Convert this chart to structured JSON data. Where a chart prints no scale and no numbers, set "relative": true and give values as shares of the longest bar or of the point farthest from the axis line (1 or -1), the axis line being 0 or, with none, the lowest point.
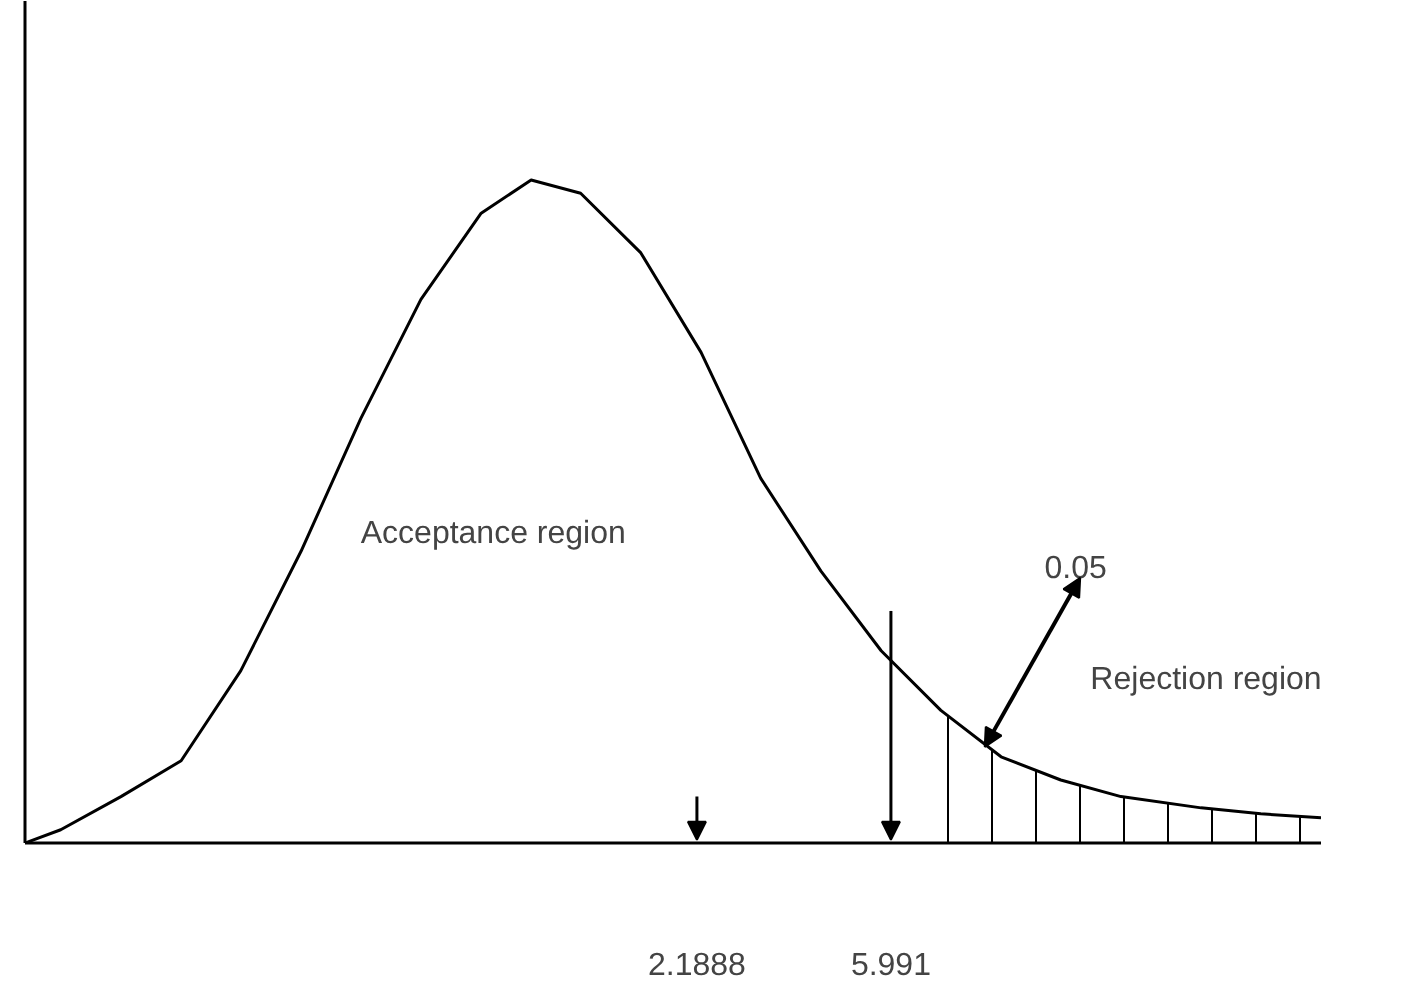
{
  "chart_data": {
    "type": "line",
    "relative": true,
    "series": [
      {
        "color": "#000000",
        "x": [
          -10.98,
          -10.28,
          -9.1,
          -7.92,
          -6.75,
          -5.57,
          -4.4,
          -3.22,
          -2.04,
          -1.06,
          -0.09,
          1.09,
          2.27,
          3.44,
          4.62,
          5.8,
          6.97,
          8.15,
          9.32,
          10.5,
          12.07,
          13.24,
          14.42
        ],
        "values": [
          0,
          0.02,
          0.07,
          0.124,
          0.26,
          0.44,
          0.64,
          0.82,
          0.95,
          1.0,
          0.98,
          0.89,
          0.74,
          0.55,
          0.41,
          0.29,
          0.2,
          0.13,
          0.095,
          0.07,
          0.053,
          0.044,
          0.038
        ]
      },
      {
        "type": "area",
        "color": "#000000",
        "x": [
          6.97,
          8.15,
          9.32,
          10.5,
          12.07,
          13.24,
          14.42
        ],
        "values": [
          0.2,
          0.13,
          0.095,
          0.07,
          0.053,
          0.044,
          0.038
        ]
      }
    ],
    "xlim": [
      -10.98,
      14.42
    ],
    "xticks": [
      {
        "value": 2.1888,
        "label": "2.1888"
      },
      {
        "value": 5.991,
        "label": "5.991"
      }
    ],
    "annotations": [
      "Acceptance region",
      "0.05",
      "Rejection region"
    ],
    "grid": false
  }
}
